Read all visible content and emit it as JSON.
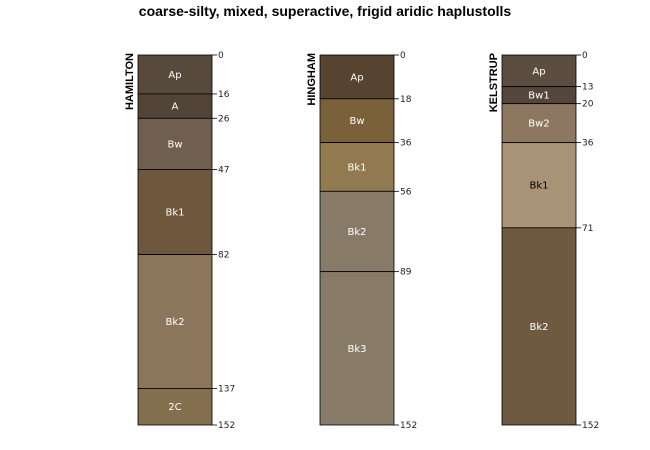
{
  "chart_data": {
    "type": "soil-profile",
    "title": "coarse-silty, mixed, superactive, frigid aridic haplustolls",
    "depth_range": [
      0,
      152
    ],
    "profiles": [
      {
        "name": "HAMILTON",
        "horizons": [
          {
            "name": "Ap",
            "top": 0,
            "bottom": 16,
            "color": "#574a3d",
            "text_color": "#ffffff"
          },
          {
            "name": "A",
            "top": 16,
            "bottom": 26,
            "color": "#524537",
            "text_color": "#ffffff"
          },
          {
            "name": "Bw",
            "top": 26,
            "bottom": 47,
            "color": "#705f4f",
            "text_color": "#ffffff"
          },
          {
            "name": "Bk1",
            "top": 47,
            "bottom": 82,
            "color": "#6f573e",
            "text_color": "#ffffff"
          },
          {
            "name": "Bk2",
            "top": 82,
            "bottom": 137,
            "color": "#8b765c",
            "text_color": "#ffffff"
          },
          {
            "name": "2C",
            "top": 137,
            "bottom": 152,
            "color": "#84704f",
            "text_color": "#ffffff"
          }
        ],
        "depths": [
          "0",
          "16",
          "26",
          "47",
          "82",
          "137",
          "152"
        ]
      },
      {
        "name": "HINGHAM",
        "horizons": [
          {
            "name": "Ap",
            "top": 0,
            "bottom": 18,
            "color": "#574430",
            "text_color": "#ffffff"
          },
          {
            "name": "Bw",
            "top": 18,
            "bottom": 36,
            "color": "#7a6139",
            "text_color": "#ffffff"
          },
          {
            "name": "Bk1",
            "top": 36,
            "bottom": 56,
            "color": "#917a4f",
            "text_color": "#ffffff"
          },
          {
            "name": "Bk2",
            "top": 56,
            "bottom": 89,
            "color": "#877a67",
            "text_color": "#ffffff"
          },
          {
            "name": "Bk3",
            "top": 89,
            "bottom": 152,
            "color": "#877b67",
            "text_color": "#ffffff"
          }
        ],
        "depths": [
          "0",
          "18",
          "36",
          "56",
          "89",
          "152"
        ]
      },
      {
        "name": "KELSTRUP",
        "horizons": [
          {
            "name": "Ap",
            "top": 0,
            "bottom": 13,
            "color": "#5b4d3f",
            "text_color": "#ffffff"
          },
          {
            "name": "Bw1",
            "top": 13,
            "bottom": 20,
            "color": "#54463a",
            "text_color": "#ffffff"
          },
          {
            "name": "Bw2",
            "top": 20,
            "bottom": 36,
            "color": "#8d7760",
            "text_color": "#ffffff"
          },
          {
            "name": "Bk1",
            "top": 36,
            "bottom": 71,
            "color": "#a89377",
            "text_color": "#000000"
          },
          {
            "name": "Bk2",
            "top": 71,
            "bottom": 152,
            "color": "#6e5a40",
            "text_color": "#ffffff"
          }
        ],
        "depths": [
          "0",
          "13",
          "20",
          "36",
          "71",
          "152"
        ]
      }
    ]
  }
}
